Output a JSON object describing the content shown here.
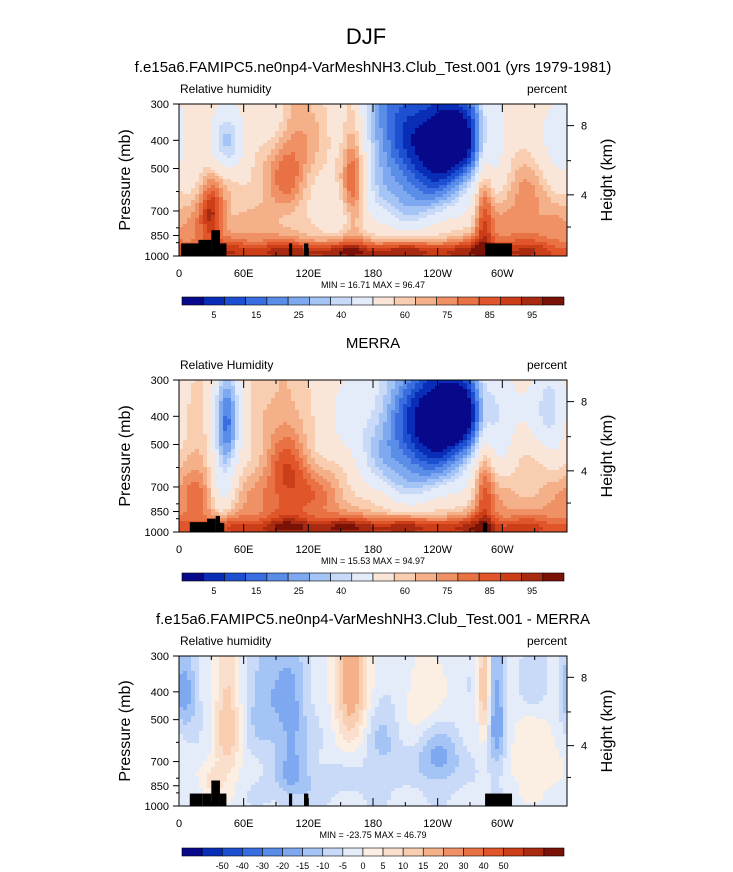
{
  "figure": {
    "main_title": "DJF",
    "panel_titles": [
      "f.e15a6.FAMIPC5.ne0np4-VarMeshNH3.Club_Test.001 (yrs 1979-1981)",
      "MERRA",
      "f.e15a6.FAMIPC5.ne0np4-VarMeshNH3.Club_Test.001 - MERRA"
    ],
    "pressure_label": "Pressure (mb)",
    "height_label": "Height (km)"
  },
  "colors": {
    "full_scale": [
      "#08088a",
      "#0a2db8",
      "#1c50d0",
      "#3a6ee0",
      "#5a8de8",
      "#7ea8f0",
      "#a4c4f6",
      "#c8daf8",
      "#e4ecfa",
      "#fae6d8",
      "#f8cdb0",
      "#f4b089",
      "#f09065",
      "#e87244",
      "#e0552a",
      "#cc3e18",
      "#a82a10",
      "#7a1208"
    ],
    "diff_scale": [
      "#08088a",
      "#0a2db8",
      "#1c50d0",
      "#3a6ee0",
      "#5a8de8",
      "#7ea8f0",
      "#a4c4f6",
      "#c8daf8",
      "#e4ecfa",
      "#fbeee2",
      "#fae0cc",
      "#f8cdb0",
      "#f4b089",
      "#f09065",
      "#e87244",
      "#e0552a",
      "#cc3e18",
      "#a82a10",
      "#7a1208"
    ],
    "terrain": "#000000"
  },
  "chart_data": [
    {
      "type": "heatmap",
      "title": "f.e15a6.FAMIPC5.ne0np4-VarMeshNH3.Club_Test.001 (yrs 1979-1981)",
      "variable_label": "Relative humidity",
      "units": "percent",
      "xlabel": "",
      "ylabel": "Pressure (mb)",
      "y2label": "Height (km)",
      "x_ticks": [
        "0",
        "60E",
        "120E",
        "180",
        "120W",
        "60W"
      ],
      "y_ticks": [
        "300",
        "400",
        "500",
        "700",
        "850",
        "1000"
      ],
      "y2_ticks": [
        "8",
        "4"
      ],
      "xlim_deg_east": [
        0,
        360
      ],
      "ylim_mb": [
        1000,
        300
      ],
      "min_max_text": "MIN =  16.71  MAX =  96.47",
      "min": 16.71,
      "max": 96.47,
      "colorbar_labels": [
        "5",
        "15",
        "25",
        "40",
        "60",
        "75",
        "85",
        "95"
      ],
      "field": {
        "base": 58,
        "slope": 22,
        "blobs": [
          {
            "lon": 258,
            "p": 390,
            "amp": -46,
            "slon": 26,
            "sp": 120
          },
          {
            "lon": 225,
            "p": 470,
            "amp": -28,
            "slon": 32,
            "sp": 230
          },
          {
            "lon": 190,
            "p": 300,
            "amp": -22,
            "slon": 22,
            "sp": 120
          },
          {
            "lon": 215,
            "p": 640,
            "amp": -14,
            "slon": 38,
            "sp": 170
          },
          {
            "lon": 45,
            "p": 410,
            "amp": -24,
            "slon": 12,
            "sp": 80
          },
          {
            "lon": 85,
            "p": 330,
            "amp": -16,
            "slon": 14,
            "sp": 90
          },
          {
            "lon": 350,
            "p": 400,
            "amp": -16,
            "slon": 16,
            "sp": 110
          },
          {
            "lon": 140,
            "p": 760,
            "amp": -12,
            "slon": 40,
            "sp": 140
          },
          {
            "lon": 162,
            "p": 540,
            "amp": 28,
            "slon": 8,
            "sp": 210
          },
          {
            "lon": 30,
            "p": 700,
            "amp": 26,
            "slon": 8,
            "sp": 120
          },
          {
            "lon": 283,
            "p": 700,
            "amp": 22,
            "slon": 6,
            "sp": 300
          },
          {
            "lon": 100,
            "p": 500,
            "amp": 14,
            "slon": 14,
            "sp": 200
          },
          {
            "lon": 100,
            "p": 420,
            "amp": 8,
            "slon": 30,
            "sp": 140
          },
          {
            "lon": 320,
            "p": 560,
            "amp": 10,
            "slon": 18,
            "sp": 220
          },
          {
            "lon": 180,
            "p": 960,
            "amp": 20,
            "slon": 120,
            "sp": 50
          }
        ],
        "terrain": [
          {
            "lon1": 2,
            "lon2": 22,
            "p": 905
          },
          {
            "lon1": 18,
            "lon2": 30,
            "p": 880
          },
          {
            "lon1": 30,
            "lon2": 38,
            "p": 815
          },
          {
            "lon1": 38,
            "lon2": 44,
            "p": 905
          },
          {
            "lon1": 102,
            "lon2": 105,
            "p": 905
          },
          {
            "lon1": 116,
            "lon2": 120,
            "p": 905
          },
          {
            "lon1": 284,
            "lon2": 309,
            "p": 905
          }
        ]
      }
    },
    {
      "type": "heatmap",
      "title": "MERRA",
      "variable_label": "Relative Humidity",
      "units": "percent",
      "xlabel": "",
      "ylabel": "Pressure (mb)",
      "y2label": "Height (km)",
      "x_ticks": [
        "0",
        "60E",
        "120E",
        "180",
        "120W",
        "60W"
      ],
      "y_ticks": [
        "300",
        "400",
        "500",
        "700",
        "850",
        "1000"
      ],
      "y2_ticks": [
        "8",
        "4"
      ],
      "xlim_deg_east": [
        0,
        360
      ],
      "ylim_mb": [
        1000,
        300
      ],
      "min_max_text": "MIN =  15.53  MAX =  94.97",
      "min": 15.53,
      "max": 94.97,
      "colorbar_labels": [
        "5",
        "15",
        "25",
        "40",
        "60",
        "75",
        "85",
        "95"
      ],
      "field": {
        "base": 60,
        "slope": 18,
        "blobs": [
          {
            "lon": 258,
            "p": 390,
            "amp": -48,
            "slon": 30,
            "sp": 120
          },
          {
            "lon": 222,
            "p": 450,
            "amp": -30,
            "slon": 36,
            "sp": 240
          },
          {
            "lon": 215,
            "p": 640,
            "amp": -14,
            "slon": 40,
            "sp": 160
          },
          {
            "lon": 45,
            "p": 420,
            "amp": -36,
            "slon": 9,
            "sp": 140
          },
          {
            "lon": 40,
            "p": 700,
            "amp": -16,
            "slon": 8,
            "sp": 180
          },
          {
            "lon": 345,
            "p": 380,
            "amp": -24,
            "slon": 12,
            "sp": 110
          },
          {
            "lon": 150,
            "p": 500,
            "amp": -8,
            "slon": 30,
            "sp": 200
          },
          {
            "lon": 283,
            "p": 640,
            "amp": 22,
            "slon": 7,
            "sp": 300
          },
          {
            "lon": 130,
            "p": 680,
            "amp": 14,
            "slon": 30,
            "sp": 120
          },
          {
            "lon": 100,
            "p": 580,
            "amp": 16,
            "slon": 14,
            "sp": 220
          },
          {
            "lon": 15,
            "p": 680,
            "amp": 10,
            "slon": 10,
            "sp": 150
          },
          {
            "lon": 180,
            "p": 960,
            "amp": 20,
            "slon": 120,
            "sp": 50
          }
        ],
        "terrain": [
          {
            "lon1": 10,
            "lon2": 28,
            "p": 925
          },
          {
            "lon1": 26,
            "lon2": 34,
            "p": 900
          },
          {
            "lon1": 34,
            "lon2": 38,
            "p": 880
          },
          {
            "lon1": 38,
            "lon2": 42,
            "p": 930
          },
          {
            "lon1": 282,
            "lon2": 286,
            "p": 930
          }
        ]
      }
    },
    {
      "type": "heatmap",
      "title": "f.e15a6.FAMIPC5.ne0np4-VarMeshNH3.Club_Test.001 - MERRA",
      "variable_label": "Relative humidity",
      "units": "percent",
      "xlabel": "",
      "ylabel": "Pressure (mb)",
      "y2label": "Height (km)",
      "x_ticks": [
        "0",
        "60E",
        "120E",
        "180",
        "120W",
        "60W"
      ],
      "y_ticks": [
        "300",
        "400",
        "500",
        "700",
        "850",
        "1000"
      ],
      "y2_ticks": [
        "8",
        "4"
      ],
      "xlim_deg_east": [
        0,
        360
      ],
      "ylim_mb": [
        1000,
        300
      ],
      "min_max_text": "MIN = -23.75  MAX =  46.79",
      "min": -23.75,
      "max": 46.79,
      "colorbar_labels": [
        "-50",
        "-40",
        "-30",
        "-20",
        "-15",
        "-10",
        "-5",
        "0",
        "5",
        "10",
        "15",
        "20",
        "30",
        "40",
        "50"
      ],
      "field": {
        "base": 1,
        "slope": 0,
        "blobs": [
          {
            "lon": 160,
            "p": 360,
            "amp": 26,
            "slon": 11,
            "sp": 160
          },
          {
            "lon": 45,
            "p": 500,
            "amp": 18,
            "slon": 9,
            "sp": 240
          },
          {
            "lon": 30,
            "p": 820,
            "amp": 10,
            "slon": 8,
            "sp": 80
          },
          {
            "lon": 283,
            "p": 380,
            "amp": 20,
            "slon": 4,
            "sp": 140
          },
          {
            "lon": 225,
            "p": 430,
            "amp": 8,
            "slon": 18,
            "sp": 120
          },
          {
            "lon": 330,
            "p": 640,
            "amp": 8,
            "slon": 20,
            "sp": 240
          },
          {
            "lon": 5,
            "p": 400,
            "amp": -16,
            "slon": 8,
            "sp": 90
          },
          {
            "lon": 105,
            "p": 560,
            "amp": -12,
            "slon": 10,
            "sp": 260
          },
          {
            "lon": 80,
            "p": 420,
            "amp": -10,
            "slon": 14,
            "sp": 140
          },
          {
            "lon": 240,
            "p": 680,
            "amp": -14,
            "slon": 14,
            "sp": 110
          },
          {
            "lon": 295,
            "p": 480,
            "amp": -16,
            "slon": 6,
            "sp": 200
          },
          {
            "lon": 330,
            "p": 380,
            "amp": -8,
            "slon": 12,
            "sp": 80
          },
          {
            "lon": 190,
            "p": 590,
            "amp": -7,
            "slon": 14,
            "sp": 160
          },
          {
            "lon": 120,
            "p": 820,
            "amp": -5,
            "slon": 30,
            "sp": 80
          }
        ],
        "terrain": [
          {
            "lon1": 10,
            "lon2": 22,
            "p": 905
          },
          {
            "lon1": 22,
            "lon2": 30,
            "p": 905
          },
          {
            "lon1": 30,
            "lon2": 38,
            "p": 815
          },
          {
            "lon1": 38,
            "lon2": 44,
            "p": 905
          },
          {
            "lon1": 102,
            "lon2": 105,
            "p": 905
          },
          {
            "lon1": 116,
            "lon2": 120,
            "p": 905
          },
          {
            "lon1": 284,
            "lon2": 309,
            "p": 905
          }
        ]
      }
    }
  ]
}
